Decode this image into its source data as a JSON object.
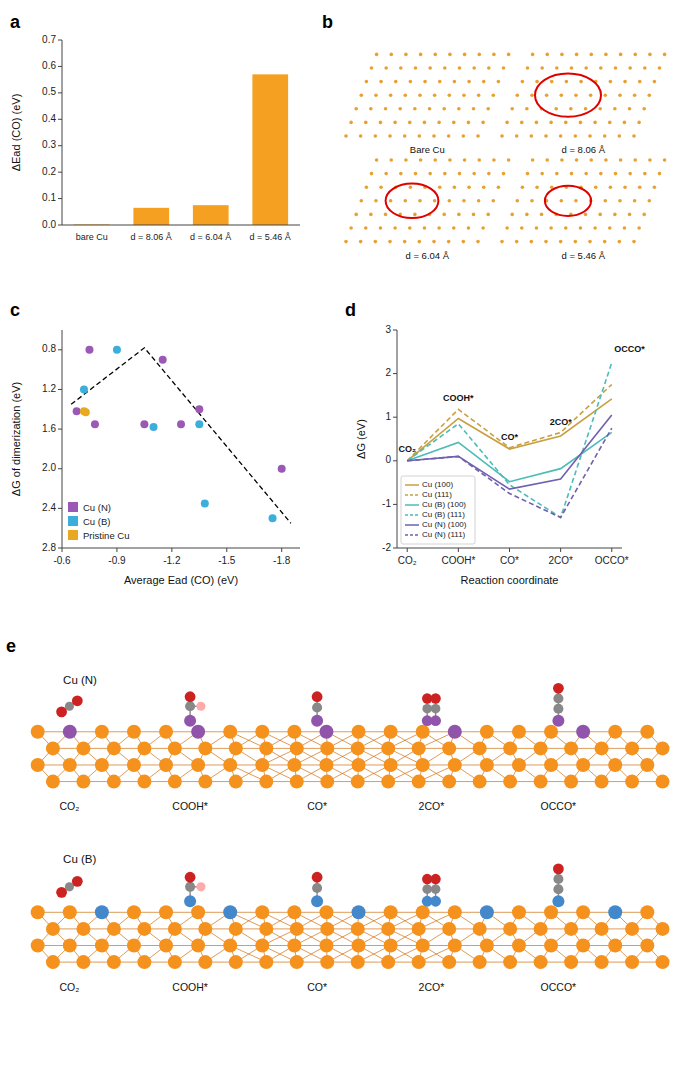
{
  "chart_data": [
    {
      "type": "bar",
      "title": "a",
      "categories": [
        "bare Cu",
        "d = 8.06 Å",
        "d = 6.04 Å",
        "d = 5.46 Å"
      ],
      "values": [
        0.002,
        0.065,
        0.075,
        0.57
      ],
      "color": "#F5A020",
      "ylim": [
        0,
        0.7
      ],
      "yticks": [
        {
          "value": 0.0,
          "label": "0.0"
        },
        0.1,
        0.2,
        0.3,
        0.4,
        0.5,
        0.6,
        0.7
      ],
      "ylabel": "ΔEad (CO) (eV)"
    },
    {
      "type": "diagram",
      "title": "b",
      "color": "#E8A030",
      "annotations": [
        "Bare Cu",
        "d = 8.06 Å",
        "d = 6.04 Å",
        "d = 5.46 Å"
      ]
    },
    {
      "type": "scatter",
      "title": "c",
      "series": [
        {
          "name": "Cu (N)",
          "color": "#9B59B6",
          "x": [
            -0.68,
            -0.75,
            -0.78,
            -1.05,
            -1.15,
            -1.25,
            -1.35,
            -1.8
          ],
          "values": [
            1.42,
            0.8,
            1.55,
            1.55,
            0.9,
            1.55,
            1.4,
            2.0
          ]
        },
        {
          "name": "Cu (B)",
          "color": "#3BAEDC",
          "x": [
            -0.72,
            -0.9,
            -1.1,
            -1.35,
            -1.38,
            -1.75
          ],
          "values": [
            1.2,
            0.8,
            1.58,
            1.55,
            2.35,
            2.5
          ]
        },
        {
          "name": "Pristine Cu",
          "color": "#E8A820",
          "x": [
            -0.72,
            -0.73
          ],
          "values": [
            1.42,
            1.43
          ]
        },
        {
          "type": "line",
          "line_style": "dashed",
          "color": "#000000",
          "x": [
            -0.65,
            -1.05,
            -1.85
          ],
          "values": [
            1.35,
            0.78,
            2.55
          ]
        }
      ],
      "xlim": [
        -0.6,
        -1.9
      ],
      "ylim": [
        2.8,
        0.6
      ],
      "xticks": [
        -0.6,
        -0.9,
        -1.2,
        -1.5,
        -1.8
      ],
      "yticks": [
        0.8,
        1.2,
        1.6,
        {
          "value": 2.0,
          "label": "2.0"
        },
        2.4,
        2.8
      ],
      "xlabel": "Average Ead (CO) (eV)",
      "ylabel": "ΔG of dimerization (eV)",
      "legend": "lower left"
    },
    {
      "type": "line",
      "title": "d",
      "x": [
        0,
        1,
        2,
        3,
        4
      ],
      "xlim": [
        -0.2,
        4.2
      ],
      "xticks": [
        {
          "value": 0,
          "label": "CO₂"
        },
        {
          "value": 1,
          "label": "COOH*"
        },
        {
          "value": 2,
          "label": "CO*"
        },
        {
          "value": 3,
          "label": "2CO*"
        },
        {
          "value": 4,
          "label": "OCCO*"
        }
      ],
      "series": [
        {
          "name": "Cu (100)",
          "color": "#C8A040",
          "line_style": "solid",
          "values": [
            0.0,
            0.97,
            0.27,
            0.57,
            1.42
          ]
        },
        {
          "name": "Cu (111)",
          "color": "#C8A040",
          "line_style": "dashed",
          "values": [
            0.0,
            1.18,
            0.3,
            0.65,
            1.75
          ]
        },
        {
          "name": "Cu (B) (100)",
          "color": "#4BBCB8",
          "line_style": "solid",
          "values": [
            0.0,
            0.42,
            -0.48,
            -0.18,
            0.65
          ]
        },
        {
          "name": "Cu (B) (111)",
          "color": "#4BBCB8",
          "line_style": "dashed",
          "values": [
            0.0,
            0.85,
            -0.55,
            -1.3,
            2.25
          ]
        },
        {
          "name": "Cu (N) (100)",
          "color": "#7060B0",
          "line_style": "solid",
          "values": [
            0.0,
            0.1,
            -0.65,
            -0.42,
            1.05
          ]
        },
        {
          "name": "Cu (N) (111)",
          "color": "#7060B0",
          "line_style": "dashed",
          "values": [
            0.0,
            0.1,
            -0.75,
            -1.3,
            0.75
          ]
        }
      ],
      "ylim": [
        -2,
        3
      ],
      "yticks": [
        -2,
        -1,
        0,
        1,
        2,
        3
      ],
      "xlabel": "Reaction coordinate",
      "ylabel": "ΔG (eV)",
      "legend": "lower left",
      "annotations": [
        {
          "text": "CO₂",
          "x": 0.0,
          "y": 0.2
        },
        {
          "text": "COOH*",
          "x": 1.0,
          "y": 1.38
        },
        {
          "text": "CO*",
          "x": 2.0,
          "y": 0.48
        },
        {
          "text": "2CO*",
          "x": 3.0,
          "y": 0.82
        },
        {
          "text": "OCCO*",
          "x": 4.05,
          "y": 2.5
        }
      ]
    },
    {
      "type": "diagram",
      "title": "e",
      "color": "#F5921E",
      "series": [
        {
          "name": "Cu (N)",
          "color": "#9055AA"
        },
        {
          "name": "Cu (B)",
          "color": "#4488CC"
        }
      ],
      "annotations": [
        "CO₂",
        "COOH*",
        "CO*",
        "2CO*",
        "OCCO*"
      ]
    }
  ]
}
